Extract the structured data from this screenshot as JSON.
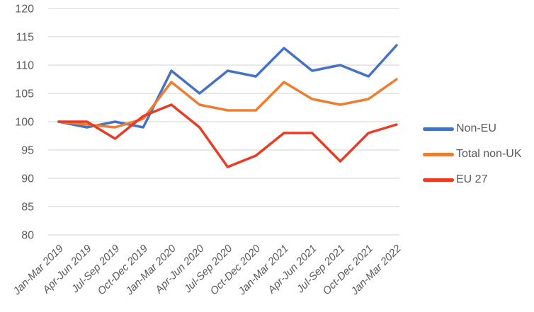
{
  "chart_data": {
    "type": "line",
    "title": "",
    "xlabel": "",
    "ylabel": "",
    "categories": [
      "Jan-Mar 2019",
      "Apr-Jun 2019",
      "Jul-Sep 2019",
      "Oct-Dec 2019",
      "Jan-Mar 2020",
      "Apr-Jun 2020",
      "Jul-Sep 2020",
      "Oct-Dec 2020",
      "Jan-Mar 2021",
      "Apr-Jun 2021",
      "Jul-Sep 2021",
      "Oct-Dec 2021",
      "Jan-Mar 2022"
    ],
    "series": [
      {
        "name": "Non-EU",
        "color": "#4472C4",
        "values": [
          100,
          99,
          100,
          99,
          109,
          105,
          109,
          108,
          113,
          109,
          110,
          108,
          113.5
        ]
      },
      {
        "name": "Total non-UK",
        "color": "#ED7D31",
        "values": [
          100,
          99.5,
          99,
          100.5,
          107,
          103,
          102,
          102,
          107,
          104,
          103,
          104,
          107.5
        ]
      },
      {
        "name": "EU 27",
        "color": "#EA3B24",
        "values": [
          100,
          100,
          97,
          101,
          103,
          99,
          92,
          94,
          98,
          98,
          93,
          98,
          99.5
        ]
      }
    ],
    "ylim": [
      80,
      120
    ],
    "yticks": [
      80,
      85,
      90,
      95,
      100,
      105,
      110,
      115,
      120
    ],
    "grid": "horizontal",
    "legend_position": "right",
    "axis_text_color": "#595959",
    "gridline_color": "#D9D9D9",
    "x_labels_rotation_deg": -45,
    "x_labels_italic": true
  }
}
